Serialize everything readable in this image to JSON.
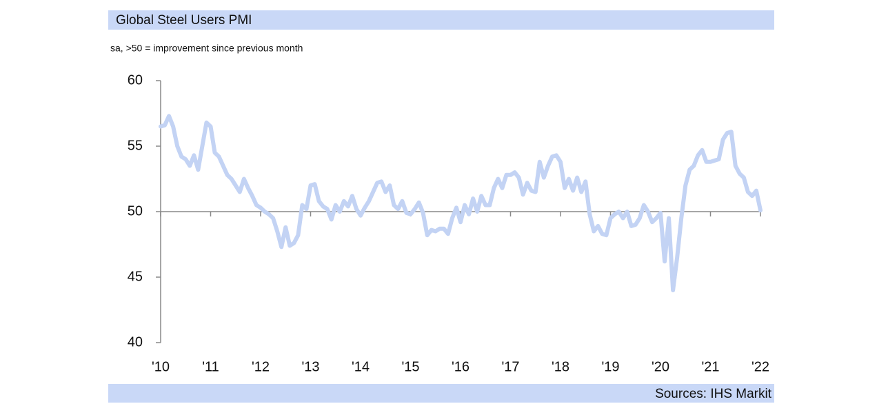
{
  "chart_data": {
    "type": "line",
    "title": "Global Steel Users PMI",
    "subtitle": "sa, >50 = improvement since previous month",
    "source": "Sources: IHS Markit",
    "categories": [
      "'10",
      null,
      null,
      null,
      null,
      null,
      null,
      null,
      null,
      null,
      null,
      null,
      "'11",
      null,
      null,
      null,
      null,
      null,
      null,
      null,
      null,
      null,
      null,
      null,
      "'12",
      null,
      null,
      null,
      null,
      null,
      null,
      null,
      null,
      null,
      null,
      null,
      "'13",
      null,
      null,
      null,
      null,
      null,
      null,
      null,
      null,
      null,
      null,
      null,
      "'14",
      null,
      null,
      null,
      null,
      null,
      null,
      null,
      null,
      null,
      null,
      null,
      "'15",
      null,
      null,
      null,
      null,
      null,
      null,
      null,
      null,
      null,
      null,
      null,
      "'16",
      null,
      null,
      null,
      null,
      null,
      null,
      null,
      null,
      null,
      null,
      null,
      "'17",
      null,
      null,
      null,
      null,
      null,
      null,
      null,
      null,
      null,
      null,
      null,
      "'18",
      null,
      null,
      null,
      null,
      null,
      null,
      null,
      null,
      null,
      null,
      null,
      "'19",
      null,
      null,
      null,
      null,
      null,
      null,
      null,
      null,
      null,
      null,
      null,
      "'20",
      null,
      null,
      null,
      null,
      null,
      null,
      null,
      null,
      null,
      null,
      null,
      "'21",
      null,
      null,
      null,
      null,
      null,
      null,
      null,
      null,
      null,
      null,
      null,
      "'22"
    ],
    "series": [
      {
        "color": "#c3d3f4",
        "values": [
          56.5,
          56.6,
          57.3,
          56.5,
          55,
          54.2,
          54,
          53.5,
          54.3,
          53.2,
          55,
          56.8,
          56.5,
          54.5,
          54.2,
          53.5,
          52.8,
          52.5,
          52,
          51.5,
          52.5,
          51.8,
          51.2,
          50.5,
          50.3,
          50,
          49.8,
          49.5,
          48.5,
          47.3,
          48.8,
          47.4,
          47.6,
          48.2,
          50.5,
          50.2,
          52,
          52.1,
          50.8,
          50.4,
          50.2,
          49.4,
          50.5,
          50,
          50.8,
          50.4,
          51.2,
          50.2,
          49.7,
          50.3,
          50.8,
          51.5,
          52.2,
          52.3,
          51.5,
          52,
          50.5,
          50.2,
          50.8,
          49.9,
          49.8,
          50.2,
          50.7,
          49.9,
          48.2,
          48.6,
          48.5,
          48.7,
          48.7,
          48.3,
          49.5,
          50.3,
          49.2,
          50.5,
          49.8,
          51,
          50,
          51.2,
          50.5,
          50.5,
          51.8,
          52.5,
          51.8,
          52.8,
          52.8,
          53,
          52.6,
          51.3,
          52.2,
          51.6,
          51.5,
          53.8,
          52.6,
          53.5,
          54.2,
          54.3,
          53.8,
          51.8,
          52.5,
          51.6,
          52.6,
          51.5,
          52.3,
          49.8,
          48.5,
          48.9,
          48.3,
          48.2,
          49.5,
          49.8,
          50,
          49.5,
          50,
          48.9,
          49,
          49.5,
          50.5,
          50,
          49.2,
          49.5,
          49.9,
          46.2,
          49.5,
          44,
          46.5,
          49.5,
          52,
          53.2,
          53.5,
          54.3,
          54.7,
          53.8,
          53.8,
          53.9,
          54,
          55.5,
          56,
          56.1,
          53.5,
          52.9,
          52.6,
          51.5,
          51.2,
          51.6,
          50.1
        ]
      }
    ],
    "ylim": [
      40,
      60
    ],
    "yticks": [
      40,
      45,
      50,
      55,
      60
    ],
    "reference_line": 50
  }
}
